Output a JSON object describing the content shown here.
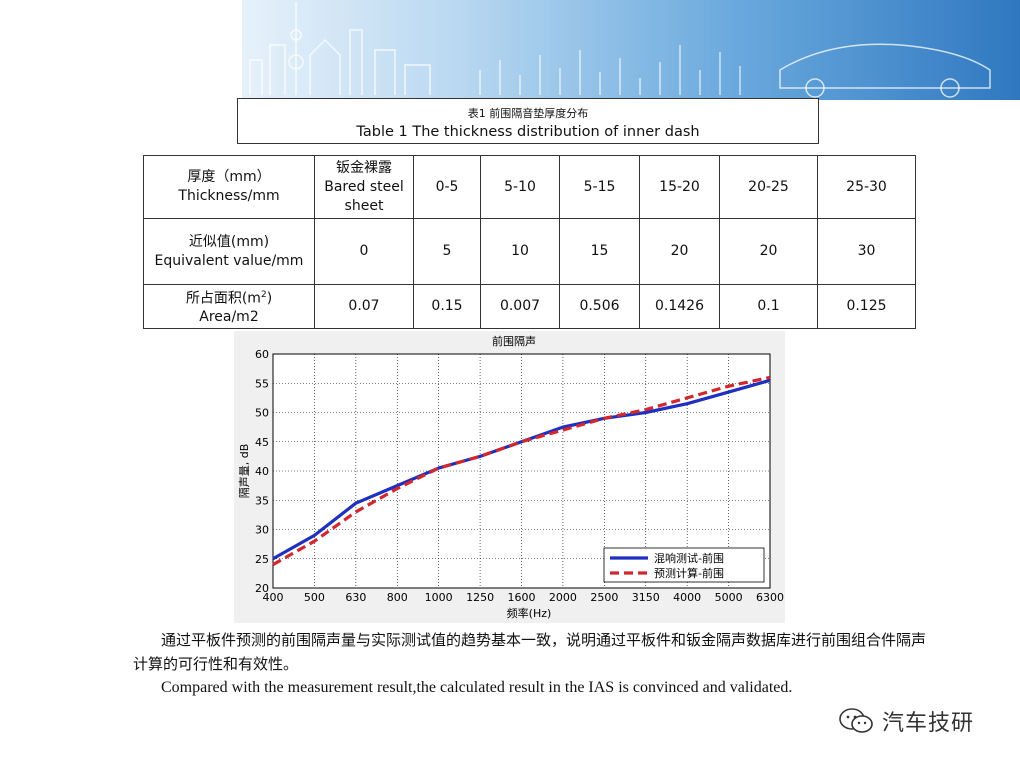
{
  "caption": {
    "cn": "表1 前围隔音垫厚度分布",
    "en": "Table 1 The thickness distribution of inner dash"
  },
  "table": {
    "rows": [
      {
        "label_cn": "厚度（mm）",
        "label_en": "Thickness/mm",
        "cells": [
          "钣金裸露 Bared steel sheet",
          "0-5",
          "5-10",
          "5-15",
          "15-20",
          "20-25",
          "25-30"
        ]
      },
      {
        "label_cn": "近似值(mm)",
        "label_en": "Equivalent value/mm",
        "cells": [
          "0",
          "5",
          "10",
          "15",
          "20",
          "20",
          "30"
        ]
      },
      {
        "label_cn": "所占面积(m2)",
        "label_en": "Area/m2",
        "cells": [
          "0.07",
          "0.15",
          "0.007",
          "0.506",
          "0.1426",
          "0.1",
          "0.125"
        ]
      }
    ],
    "bared_cn": "钣金裸露",
    "bared_en1": "Bared steel",
    "bared_en2": "sheet",
    "area_cn_prefix": "所占面积(m",
    "area_cn_sup": "2",
    "area_cn_suffix": ")"
  },
  "chart_data": {
    "type": "line",
    "title": "前围隔声",
    "xlabel": "频率(Hz)",
    "ylabel": "隔声量, dB",
    "categories": [
      "400",
      "500",
      "630",
      "800",
      "1000",
      "1250",
      "1600",
      "2000",
      "2500",
      "3150",
      "4000",
      "5000",
      "6300"
    ],
    "ylim": [
      20,
      60
    ],
    "yticks": [
      20,
      25,
      30,
      35,
      40,
      45,
      50,
      55,
      60
    ],
    "grid": "dotted",
    "legend_position": "bottom-right",
    "series": [
      {
        "name": "混响测试-前围",
        "color": "#1f2fbf",
        "style": "solid",
        "values": [
          25,
          29,
          34.5,
          37.5,
          40.5,
          42.5,
          45,
          47.5,
          49,
          50,
          51.5,
          53.5,
          55.5
        ]
      },
      {
        "name": "预测计算-前围",
        "color": "#d0282e",
        "style": "dashed",
        "values": [
          24,
          28,
          33,
          37,
          40.5,
          42.5,
          45,
          47,
          49,
          50.5,
          52.5,
          54.5,
          56
        ]
      }
    ]
  },
  "paragraph": {
    "cn": "通过平板件预测的前围隔声量与实际测试值的趋势基本一致，说明通过平板件和钣金隔声数据库进行前围组合件隔声计算的可行性和有效性。",
    "en": "Compared with the measurement result,the calculated result in the IAS is convinced and validated."
  },
  "watermark": {
    "icon": "wechat-icon",
    "text": "汽车技研"
  }
}
